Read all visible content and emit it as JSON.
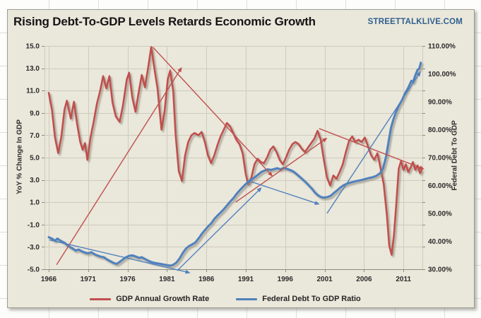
{
  "header": {
    "title": "Rising Debt-To-GDP Levels Retards Economic Growth",
    "logo": "STREETTALKLIVE.COM"
  },
  "colors": {
    "chart_background": "#EAE7DB",
    "gridline": "#CFCBBC",
    "axis_line": "#8F8B7E",
    "gdp_red": "#C0504D",
    "debt_blue": "#4F81BD",
    "series_shadow": "#8B8778",
    "title_text": "#141414",
    "logo_blue": "#30618F"
  },
  "axes": {
    "left": {
      "title": "YoY % Change In GDP",
      "ticks": [
        "15.0",
        "13.0",
        "11.0",
        "9.0",
        "7.0",
        "5.0",
        "3.0",
        "1.0",
        "-1.0",
        "-3.0",
        "-5.0"
      ]
    },
    "right": {
      "title": "Federal Debt To GDP",
      "ticks": [
        "110.00%",
        "100.00%",
        "90.00%",
        "80.00%",
        "70.00%",
        "60.00%",
        "50.00%",
        "40.00%",
        "30.00%"
      ]
    },
    "x": {
      "ticks": [
        "1966",
        "1971",
        "1976",
        "1981",
        "1986",
        "1991",
        "1996",
        "2001",
        "2006",
        "2011"
      ]
    }
  },
  "legend": {
    "items": [
      {
        "label": "GDP Annual Growth Rate",
        "color": "#C0504D"
      },
      {
        "label": "Federal Debt To GDP Ratio",
        "color": "#4F81BD"
      }
    ]
  },
  "chart_data": {
    "type": "line",
    "title": "Rising Debt-To-GDP Levels Retards Economic Growth",
    "x_range": [
      1966,
      2013.4
    ],
    "left_axis": {
      "label": "YoY % Change In GDP",
      "min": -5,
      "max": 15
    },
    "right_axis": {
      "label": "Federal Debt To GDP",
      "min": 30,
      "max": 110,
      "unit": "%"
    },
    "grid": true,
    "legend_position": "bottom",
    "series": [
      {
        "name": "GDP Annual Growth Rate",
        "axis": "left",
        "color": "#C0504D",
        "width": 2.6,
        "points": [
          [
            1966.0,
            10.8
          ],
          [
            1966.4,
            9.3
          ],
          [
            1966.8,
            6.8
          ],
          [
            1967.2,
            5.4
          ],
          [
            1967.6,
            6.9
          ],
          [
            1968.0,
            9.3
          ],
          [
            1968.3,
            10.1
          ],
          [
            1968.8,
            8.5
          ],
          [
            1969.2,
            10.0
          ],
          [
            1969.6,
            8.0
          ],
          [
            1970.0,
            6.4
          ],
          [
            1970.3,
            5.7
          ],
          [
            1970.6,
            6.3
          ],
          [
            1970.9,
            4.8
          ],
          [
            1971.3,
            6.8
          ],
          [
            1971.7,
            8.2
          ],
          [
            1972.1,
            9.8
          ],
          [
            1972.5,
            10.9
          ],
          [
            1972.9,
            12.3
          ],
          [
            1973.3,
            11.2
          ],
          [
            1973.7,
            12.3
          ],
          [
            1974.1,
            9.9
          ],
          [
            1974.5,
            8.7
          ],
          [
            1975.0,
            8.2
          ],
          [
            1975.4,
            9.6
          ],
          [
            1975.9,
            12.0
          ],
          [
            1976.2,
            12.6
          ],
          [
            1976.6,
            10.4
          ],
          [
            1977.0,
            9.1
          ],
          [
            1977.4,
            10.8
          ],
          [
            1977.8,
            12.4
          ],
          [
            1978.2,
            11.3
          ],
          [
            1978.6,
            13.0
          ],
          [
            1979.0,
            14.9
          ],
          [
            1979.4,
            13.0
          ],
          [
            1979.8,
            11.2
          ],
          [
            1980.3,
            7.5
          ],
          [
            1980.7,
            9.2
          ],
          [
            1981.1,
            12.0
          ],
          [
            1981.4,
            12.8
          ],
          [
            1981.8,
            10.9
          ],
          [
            1982.1,
            7.0
          ],
          [
            1982.5,
            3.8
          ],
          [
            1982.9,
            2.9
          ],
          [
            1983.3,
            5.2
          ],
          [
            1983.7,
            6.4
          ],
          [
            1984.1,
            7.0
          ],
          [
            1984.5,
            7.2
          ],
          [
            1985.0,
            7.0
          ],
          [
            1985.4,
            7.3
          ],
          [
            1985.8,
            6.4
          ],
          [
            1986.2,
            5.2
          ],
          [
            1986.6,
            4.5
          ],
          [
            1987.0,
            5.2
          ],
          [
            1987.4,
            6.1
          ],
          [
            1987.8,
            6.9
          ],
          [
            1988.2,
            7.5
          ],
          [
            1988.6,
            8.1
          ],
          [
            1989.0,
            7.8
          ],
          [
            1989.4,
            7.2
          ],
          [
            1989.8,
            6.6
          ],
          [
            1990.2,
            6.2
          ],
          [
            1990.6,
            5.4
          ],
          [
            1991.0,
            3.5
          ],
          [
            1991.3,
            2.6
          ],
          [
            1991.7,
            3.2
          ],
          [
            1992.1,
            4.4
          ],
          [
            1992.5,
            4.9
          ],
          [
            1992.9,
            4.6
          ],
          [
            1993.3,
            4.5
          ],
          [
            1993.7,
            5.0
          ],
          [
            1994.1,
            5.7
          ],
          [
            1994.5,
            6.0
          ],
          [
            1994.9,
            5.5
          ],
          [
            1995.3,
            4.8
          ],
          [
            1995.7,
            4.4
          ],
          [
            1996.1,
            5.0
          ],
          [
            1996.5,
            5.7
          ],
          [
            1996.9,
            6.2
          ],
          [
            1997.3,
            6.4
          ],
          [
            1997.7,
            6.2
          ],
          [
            1998.1,
            5.8
          ],
          [
            1998.5,
            5.5
          ],
          [
            1998.9,
            5.9
          ],
          [
            1999.3,
            6.3
          ],
          [
            1999.7,
            6.7
          ],
          [
            2000.1,
            7.4
          ],
          [
            2000.5,
            6.6
          ],
          [
            2000.9,
            4.8
          ],
          [
            2001.3,
            3.2
          ],
          [
            2001.7,
            2.5
          ],
          [
            2002.1,
            3.4
          ],
          [
            2002.5,
            3.1
          ],
          [
            2002.9,
            3.7
          ],
          [
            2003.3,
            4.4
          ],
          [
            2003.7,
            5.5
          ],
          [
            2004.1,
            6.5
          ],
          [
            2004.5,
            6.9
          ],
          [
            2004.9,
            6.4
          ],
          [
            2005.3,
            6.6
          ],
          [
            2005.7,
            6.4
          ],
          [
            2006.1,
            6.8
          ],
          [
            2006.5,
            6.0
          ],
          [
            2006.9,
            5.2
          ],
          [
            2007.3,
            4.8
          ],
          [
            2007.7,
            5.4
          ],
          [
            2008.1,
            4.0
          ],
          [
            2008.5,
            2.6
          ],
          [
            2008.9,
            -0.2
          ],
          [
            2009.2,
            -2.9
          ],
          [
            2009.5,
            -3.7
          ],
          [
            2009.8,
            -1.9
          ],
          [
            2010.1,
            1.0
          ],
          [
            2010.4,
            4.0
          ],
          [
            2010.7,
            4.7
          ],
          [
            2011.0,
            3.9
          ],
          [
            2011.3,
            4.4
          ],
          [
            2011.6,
            3.7
          ],
          [
            2011.9,
            4.1
          ],
          [
            2012.2,
            4.6
          ],
          [
            2012.5,
            3.9
          ],
          [
            2012.8,
            4.3
          ],
          [
            2013.1,
            3.6
          ],
          [
            2013.3,
            3.9
          ]
        ]
      },
      {
        "name": "Federal Debt To GDP Ratio",
        "axis": "right",
        "color": "#4F81BD",
        "width": 3,
        "points": [
          [
            1966.0,
            41.5
          ],
          [
            1966.4,
            41.0
          ],
          [
            1966.8,
            40.2
          ],
          [
            1967.1,
            41.0
          ],
          [
            1967.5,
            40.2
          ],
          [
            1968.0,
            39.5
          ],
          [
            1968.5,
            38.3
          ],
          [
            1969.0,
            37.5
          ],
          [
            1969.4,
            36.7
          ],
          [
            1969.8,
            37.1
          ],
          [
            1970.2,
            36.4
          ],
          [
            1970.6,
            36.0
          ],
          [
            1971.0,
            35.7
          ],
          [
            1971.4,
            36.1
          ],
          [
            1971.8,
            35.4
          ],
          [
            1972.2,
            34.9
          ],
          [
            1972.6,
            34.5
          ],
          [
            1973.0,
            34.3
          ],
          [
            1973.4,
            33.5
          ],
          [
            1973.8,
            32.9
          ],
          [
            1974.2,
            32.3
          ],
          [
            1974.6,
            31.9
          ],
          [
            1975.0,
            32.6
          ],
          [
            1975.4,
            33.5
          ],
          [
            1975.8,
            34.3
          ],
          [
            1976.2,
            34.8
          ],
          [
            1976.6,
            35.0
          ],
          [
            1977.0,
            34.6
          ],
          [
            1977.4,
            34.1
          ],
          [
            1977.8,
            34.3
          ],
          [
            1978.2,
            33.7
          ],
          [
            1978.6,
            33.1
          ],
          [
            1979.0,
            32.6
          ],
          [
            1979.4,
            32.3
          ],
          [
            1979.8,
            32.1
          ],
          [
            1980.2,
            31.9
          ],
          [
            1980.6,
            31.7
          ],
          [
            1981.0,
            31.5
          ],
          [
            1981.4,
            31.3
          ],
          [
            1981.8,
            31.6
          ],
          [
            1982.2,
            32.4
          ],
          [
            1982.6,
            33.9
          ],
          [
            1983.0,
            35.8
          ],
          [
            1983.4,
            37.4
          ],
          [
            1983.8,
            38.3
          ],
          [
            1984.2,
            38.9
          ],
          [
            1984.6,
            39.6
          ],
          [
            1985.0,
            41.0
          ],
          [
            1985.4,
            42.6
          ],
          [
            1985.8,
            44.0
          ],
          [
            1986.2,
            45.3
          ],
          [
            1986.6,
            46.4
          ],
          [
            1987.0,
            48.0
          ],
          [
            1987.4,
            49.2
          ],
          [
            1987.8,
            50.3
          ],
          [
            1988.2,
            51.5
          ],
          [
            1988.6,
            52.8
          ],
          [
            1989.0,
            54.2
          ],
          [
            1989.4,
            55.4
          ],
          [
            1989.8,
            56.9
          ],
          [
            1990.2,
            58.2
          ],
          [
            1990.6,
            59.4
          ],
          [
            1991.0,
            60.5
          ],
          [
            1991.4,
            61.6
          ],
          [
            1991.8,
            62.3
          ],
          [
            1992.2,
            63.1
          ],
          [
            1992.6,
            64.0
          ],
          [
            1993.0,
            64.9
          ],
          [
            1993.4,
            65.4
          ],
          [
            1993.8,
            65.8
          ],
          [
            1994.2,
            65.6
          ],
          [
            1994.6,
            65.9
          ],
          [
            1995.0,
            66.2
          ],
          [
            1995.4,
            65.8
          ],
          [
            1995.8,
            66.3
          ],
          [
            1996.2,
            66.0
          ],
          [
            1996.6,
            65.6
          ],
          [
            1997.0,
            65.1
          ],
          [
            1997.4,
            64.2
          ],
          [
            1997.8,
            63.2
          ],
          [
            1998.2,
            62.2
          ],
          [
            1998.6,
            61.2
          ],
          [
            1999.0,
            60.0
          ],
          [
            1999.4,
            58.8
          ],
          [
            1999.8,
            57.4
          ],
          [
            2000.2,
            56.4
          ],
          [
            2000.6,
            55.8
          ],
          [
            2001.0,
            55.7
          ],
          [
            2001.4,
            55.9
          ],
          [
            2001.8,
            56.4
          ],
          [
            2002.2,
            57.4
          ],
          [
            2002.6,
            58.3
          ],
          [
            2003.0,
            59.3
          ],
          [
            2003.4,
            60.1
          ],
          [
            2003.8,
            60.6
          ],
          [
            2004.2,
            61.0
          ],
          [
            2004.6,
            61.3
          ],
          [
            2005.0,
            61.6
          ],
          [
            2005.4,
            61.8
          ],
          [
            2006.0,
            62.2
          ],
          [
            2006.5,
            62.6
          ],
          [
            2007.0,
            62.9
          ],
          [
            2007.5,
            63.4
          ],
          [
            2008.0,
            64.3
          ],
          [
            2008.4,
            66.0
          ],
          [
            2008.8,
            70.5
          ],
          [
            2009.1,
            75.5
          ],
          [
            2009.4,
            80.5
          ],
          [
            2009.7,
            83.5
          ],
          [
            2010.0,
            86.0
          ],
          [
            2010.4,
            88.5
          ],
          [
            2010.8,
            90.5
          ],
          [
            2011.2,
            93.0
          ],
          [
            2011.6,
            95.0
          ],
          [
            2012.0,
            97.5
          ],
          [
            2012.2,
            97.0
          ],
          [
            2012.5,
            99.5
          ],
          [
            2012.8,
            101.5
          ],
          [
            2013.0,
            101.8
          ],
          [
            2013.2,
            104.0
          ]
        ]
      }
    ],
    "trend_arrows": [
      {
        "name": "gdp-uptrend-1966-1982",
        "axis": "left",
        "color": "#C0504D",
        "from": [
          1967.0,
          -4.6
        ],
        "to": [
          1982.8,
          13.0
        ]
      },
      {
        "name": "gdp-downtrend-1979-1994",
        "axis": "left",
        "color": "#C0504D",
        "from": [
          1979.2,
          14.9
        ],
        "to": [
          1994.3,
          3.4
        ]
      },
      {
        "name": "gdp-uptrend-1990-2001",
        "axis": "left",
        "color": "#C0504D",
        "from": [
          1989.7,
          1.0
        ],
        "to": [
          2001.2,
          6.7
        ]
      },
      {
        "name": "gdp-downtrend-2000-2013",
        "axis": "left",
        "color": "#C0504D",
        "from": [
          2000.3,
          7.6
        ],
        "to": [
          2013.5,
          4.0
        ]
      },
      {
        "name": "debt-downtrend-1966-1983",
        "axis": "right",
        "color": "#4F81BD",
        "from": [
          1966.1,
          40.5
        ],
        "to": [
          1983.8,
          28.8
        ]
      },
      {
        "name": "debt-uptrend-1982-1993",
        "axis": "right",
        "color": "#4F81BD",
        "from": [
          1982.3,
          29.5
        ],
        "to": [
          1992.9,
          59.0
        ]
      },
      {
        "name": "debt-downtrend-1991-2000",
        "axis": "right",
        "color": "#4F81BD",
        "from": [
          1991.2,
          61.8
        ],
        "to": [
          2000.2,
          53.4
        ]
      },
      {
        "name": "debt-uptrend-2001-2013",
        "axis": "right",
        "color": "#4F81BD",
        "from": [
          2001.3,
          50.0
        ],
        "to": [
          2013.1,
          100.5
        ]
      }
    ]
  }
}
